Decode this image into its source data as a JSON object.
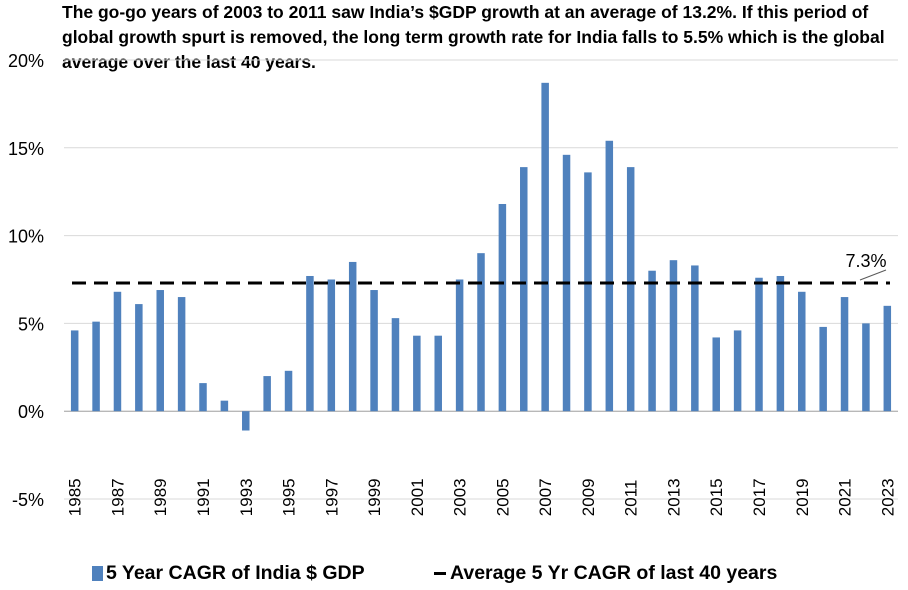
{
  "title": "The go-go years of 2003 to 2011 saw India’s $GDP growth at an average of 13.2%. If this period of global growth spurt is removed, the long term growth rate for India falls to 5.5% which is the global average over the last 40 years.",
  "chart_data": {
    "type": "bar",
    "x": [
      1985,
      1986,
      1987,
      1988,
      1989,
      1990,
      1991,
      1992,
      1993,
      1994,
      1995,
      1996,
      1997,
      1998,
      1999,
      2000,
      2001,
      2002,
      2003,
      2004,
      2005,
      2006,
      2007,
      2008,
      2009,
      2010,
      2011,
      2012,
      2013,
      2014,
      2015,
      2016,
      2017,
      2018,
      2019,
      2020,
      2021,
      2022,
      2023
    ],
    "x_tick_labels": [
      "1985",
      "1987",
      "1989",
      "1991",
      "1993",
      "1995",
      "1997",
      "1999",
      "2001",
      "2003",
      "2005",
      "2007",
      "2009",
      "2011",
      "2013",
      "2015",
      "2017",
      "2019",
      "2021",
      "2023"
    ],
    "series": [
      {
        "name": "5 Year CAGR of India $ GDP",
        "type": "bar",
        "color": "#4f81bd",
        "values": [
          4.6,
          5.1,
          6.8,
          6.1,
          6.9,
          6.5,
          1.6,
          0.6,
          -1.1,
          2.0,
          2.3,
          7.7,
          7.5,
          8.5,
          6.9,
          5.3,
          4.3,
          4.3,
          7.5,
          9.0,
          11.8,
          13.9,
          18.7,
          14.6,
          13.6,
          15.4,
          13.9,
          8.0,
          8.6,
          8.3,
          4.2,
          4.6,
          7.6,
          7.7,
          6.8,
          4.8,
          6.5,
          5.0,
          6.0
        ]
      },
      {
        "name": "Average 5 Yr CAGR of last 40 years",
        "type": "line",
        "style": "dashed",
        "color": "#000000",
        "value": 7.3
      }
    ],
    "y_tick_labels": [
      "-5%",
      "0%",
      "5%",
      "10%",
      "15%",
      "20%"
    ],
    "y_ticks": [
      -5,
      0,
      5,
      10,
      15,
      20
    ],
    "ylim": [
      -5,
      20
    ],
    "annotation": "7.3%",
    "legend": [
      "5 Year CAGR of India $ GDP",
      "Average 5 Yr CAGR of last 40 years"
    ],
    "legend_position": "bottom"
  }
}
